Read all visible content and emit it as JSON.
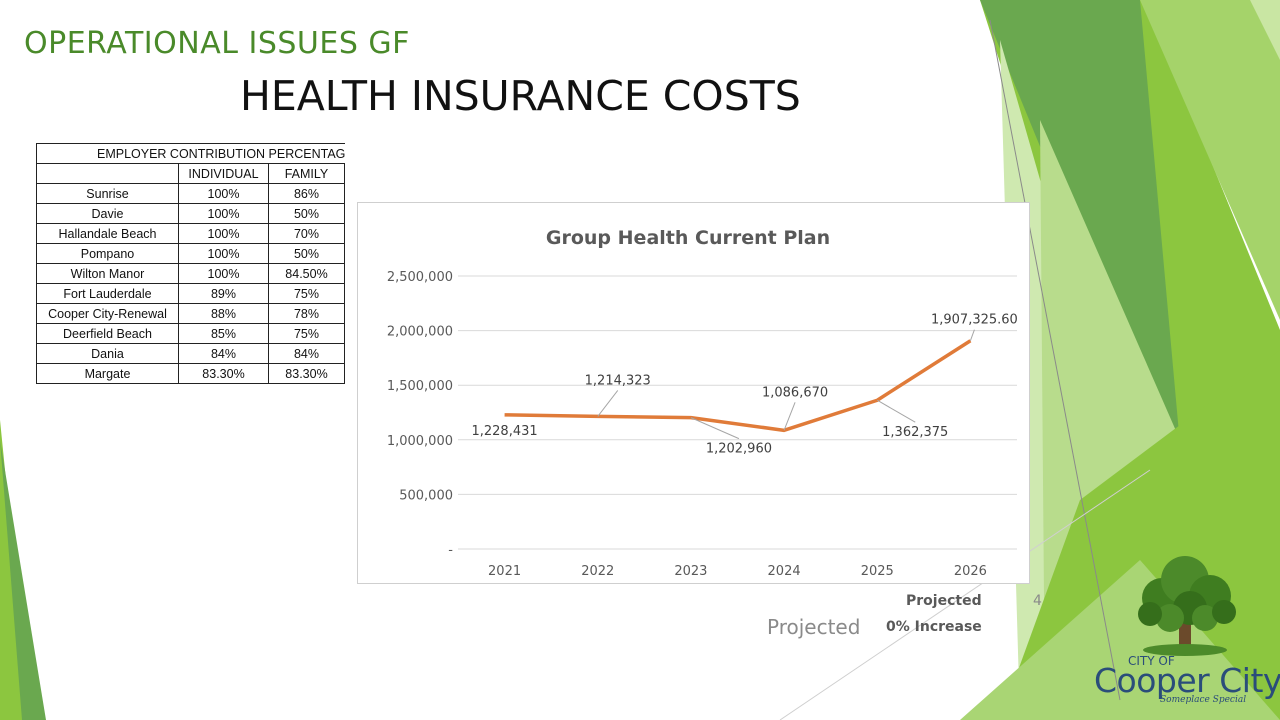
{
  "slide": {
    "kicker": "OPERATIONAL ISSUES GF",
    "title": "HEALTH INSURANCE COSTS",
    "slide_number": "4",
    "accent_green": "#4a8a2a",
    "notes": {
      "projected_large": "Projected",
      "projected_small": "Projected",
      "increase": "0% Increase"
    }
  },
  "contribution_table": {
    "caption": "EMPLOYER CONTRIBUTION PERCENTAGES",
    "columns": [
      "",
      "INDIVIDUAL",
      "FAMILY"
    ],
    "rows": [
      [
        "Sunrise",
        "100%",
        "86%"
      ],
      [
        "Davie",
        "100%",
        "50%"
      ],
      [
        "Hallandale Beach",
        "100%",
        "70%"
      ],
      [
        "Pompano",
        "100%",
        "50%"
      ],
      [
        "Wilton Manor",
        "100%",
        "84.50%"
      ],
      [
        "Fort Lauderdale",
        "89%",
        "75%"
      ],
      [
        "Cooper City-Renewal",
        "88%",
        "78%"
      ],
      [
        "Deerfield Beach",
        "85%",
        "75%"
      ],
      [
        "Dania",
        "84%",
        "84%"
      ],
      [
        "Margate",
        "83.30%",
        "83.30%"
      ]
    ]
  },
  "chart_data": {
    "type": "line",
    "title": "Group Health  Current  Plan",
    "xlabel": "",
    "ylabel": "",
    "categories": [
      "2021",
      "2022",
      "2023",
      "2024",
      "2025",
      "2026"
    ],
    "series": [
      {
        "values": [
          1228431,
          1214323,
          1202960,
          1086670,
          1362375,
          1907325.6
        ],
        "color": "#e07b39"
      }
    ],
    "data_labels": [
      "1,228,431",
      "1,214,323",
      "1,202,960",
      "1,086,670",
      "1,362,375",
      "1,907,325.60"
    ],
    "ylim": [
      0,
      2500000
    ],
    "yticks": [
      0,
      500000,
      1000000,
      1500000,
      2000000,
      2500000
    ],
    "ytick_labels": [
      "-",
      "500,000",
      "1,000,000",
      "1,500,000",
      "2,000,000",
      "2,500,000"
    ],
    "grid": true,
    "legend": "none"
  },
  "logo": {
    "city_of": "CITY OF",
    "name": "Cooper City",
    "tagline": "Someplace Special",
    "tree_color": "#3f7d20",
    "text_color": "#2a4d7a"
  }
}
